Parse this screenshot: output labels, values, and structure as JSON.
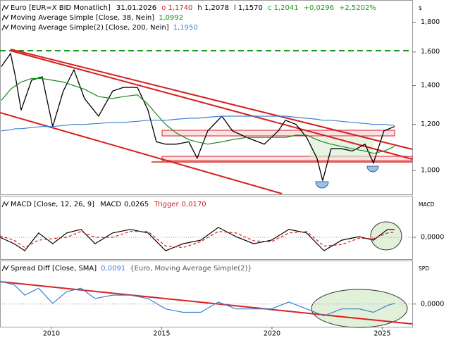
{
  "chart_data": [
    {
      "type": "line",
      "title": "Euro [EUR=X BID Monatlich]",
      "date": "31.01.2026",
      "quote": {
        "open": "o 1,1740",
        "high": "h 1,2078",
        "low": "l 1,1570",
        "close": "c 1,2041",
        "change": "+0,0296",
        "change_pct": "+2,5202%"
      },
      "axis_unit": "$",
      "log_scale": true,
      "grid": false,
      "xlim": [
        2007.67,
        2026.36
      ],
      "x": [
        2007.73,
        2008.15,
        2008.37,
        2008.63,
        2009.1,
        2009.58,
        2010.06,
        2010.54,
        2011.02,
        2011.5,
        2012.14,
        2012.78,
        2013.26,
        2013.9,
        2014.38,
        2014.76,
        2015.18,
        2015.66,
        2016.23,
        2016.61,
        2017.09,
        2017.73,
        2018.21,
        2018.85,
        2019.65,
        2020.29,
        2020.61,
        2021.09,
        2021.57,
        2022.04,
        2022.3,
        2022.68,
        2023.16,
        2023.64,
        2024.22,
        2024.6,
        2025.08,
        2025.56
      ],
      "series": [
        {
          "color": "#000000",
          "values": [
            1.51,
            1.59,
            1.45,
            1.27,
            1.43,
            1.45,
            1.19,
            1.37,
            1.49,
            1.33,
            1.24,
            1.37,
            1.39,
            1.39,
            1.27,
            1.12,
            1.11,
            1.11,
            1.12,
            1.05,
            1.17,
            1.24,
            1.17,
            1.14,
            1.11,
            1.17,
            1.22,
            1.2,
            1.14,
            1.05,
            0.96,
            1.09,
            1.09,
            1.08,
            1.11,
            1.03,
            1.17,
            1.19
          ]
        },
        {
          "name": "Moving Average Simple [Close, 38, Nein]",
          "last_label": "1,0992",
          "color": "#1a8a1a",
          "values": [
            1.32,
            1.38,
            1.4,
            1.42,
            1.44,
            1.44,
            1.43,
            1.42,
            1.4,
            1.38,
            1.34,
            1.33,
            1.34,
            1.35,
            1.3,
            1.25,
            1.2,
            1.16,
            1.13,
            1.12,
            1.11,
            1.12,
            1.13,
            1.14,
            1.14,
            1.14,
            1.14,
            1.15,
            1.15,
            1.13,
            1.12,
            1.11,
            1.1,
            1.09,
            1.08,
            1.07,
            1.08,
            1.1
          ]
        },
        {
          "name": "Moving Average Simple(2) [Close, 200, Nein]",
          "last_label": "1,1950",
          "color": "#3b7fd4",
          "values": [
            1.17,
            1.175,
            1.18,
            1.18,
            1.185,
            1.19,
            1.19,
            1.195,
            1.2,
            1.2,
            1.205,
            1.21,
            1.21,
            1.215,
            1.22,
            1.22,
            1.22,
            1.225,
            1.23,
            1.23,
            1.235,
            1.24,
            1.24,
            1.24,
            1.24,
            1.24,
            1.24,
            1.235,
            1.23,
            1.225,
            1.22,
            1.22,
            1.215,
            1.21,
            1.205,
            1.2,
            1.2,
            1.195
          ]
        }
      ],
      "ylim": [
        0.912,
        1.955
      ],
      "yticks": [
        {
          "value": 1.0,
          "label": "1,000"
        },
        {
          "value": 1.2,
          "label": "1,200"
        },
        {
          "value": 1.4,
          "label": "1,400"
        },
        {
          "value": 1.6,
          "label": "1,600"
        },
        {
          "value": 1.8,
          "label": "1,800"
        }
      ]
    },
    {
      "type": "line",
      "title": "MACD [Close, 12, 26, 9]",
      "axis_unit": "MACD",
      "grid": true,
      "xlim": [
        2007.67,
        2026.36
      ],
      "x": [
        2007.67,
        2008.31,
        2008.79,
        2009.42,
        2010.06,
        2010.7,
        2011.34,
        2011.98,
        2012.78,
        2013.58,
        2014.38,
        2015.18,
        2015.97,
        2016.77,
        2017.57,
        2018.37,
        2019.17,
        2019.97,
        2020.77,
        2021.57,
        2022.36,
        2023.16,
        2023.96,
        2024.6,
        2025.24,
        2025.56
      ],
      "series": [
        {
          "name": "MACD",
          "last_label": "0,0265",
          "color": "#000000",
          "values": [
            0,
            -0.022,
            -0.046,
            0.015,
            -0.022,
            0.015,
            0.027,
            -0.022,
            0.015,
            0.027,
            0.015,
            -0.046,
            -0.022,
            -0.01,
            0.034,
            0.002,
            -0.022,
            -0.01,
            0.027,
            0.015,
            -0.046,
            -0.01,
            0.002,
            -0.01,
            0.027,
            0.027
          ]
        },
        {
          "name": "Trigger",
          "last_label": "0,0170",
          "color": "#d62020",
          "dashed": true,
          "values": [
            0.005,
            -0.01,
            -0.035,
            -0.01,
            -0.005,
            0,
            0.02,
            0,
            0,
            0.02,
            0.02,
            -0.03,
            -0.035,
            -0.015,
            0.02,
            0.015,
            -0.012,
            -0.015,
            0.015,
            0.02,
            -0.03,
            -0.025,
            -0.003,
            -0.005,
            0.015,
            0.017
          ]
        }
      ],
      "ylim": [
        -0.07,
        0.135
      ],
      "yticks": [
        {
          "value": 0,
          "label": "0,0000"
        }
      ]
    },
    {
      "type": "line",
      "title": "Spread Diff [Close, SMA]",
      "axis_unit": "SPD",
      "grid": true,
      "xlim": [
        2007.67,
        2026.36
      ],
      "x": [
        2007.67,
        2008.31,
        2008.79,
        2009.42,
        2010.06,
        2010.7,
        2011.34,
        2011.98,
        2012.78,
        2013.58,
        2014.38,
        2015.18,
        2015.97,
        2016.77,
        2017.57,
        2018.37,
        2019.17,
        2019.97,
        2020.77,
        2021.57,
        2022.36,
        2023.16,
        2023.96,
        2024.6,
        2025.24,
        2025.56
      ],
      "series": [
        {
          "name": "{Euro, Moving Average Simple(2)}",
          "last_label": "0,0091",
          "color": "#3b7fd4",
          "values": [
            0.3,
            0.255,
            0.118,
            0.209,
            0.009,
            0.164,
            0.209,
            0.073,
            0.118,
            0.118,
            0.073,
            -0.064,
            -0.109,
            -0.109,
            0.027,
            -0.064,
            -0.064,
            -0.064,
            0.027,
            -0.064,
            -0.155,
            -0.064,
            -0.064,
            -0.109,
            -0.018,
            0.009
          ]
        }
      ],
      "ylim": [
        -0.29,
        0.555
      ],
      "yticks": [
        {
          "value": 0,
          "label": "0,0000"
        }
      ],
      "xticks": [
        2010,
        2015,
        2020,
        2025
      ]
    }
  ]
}
